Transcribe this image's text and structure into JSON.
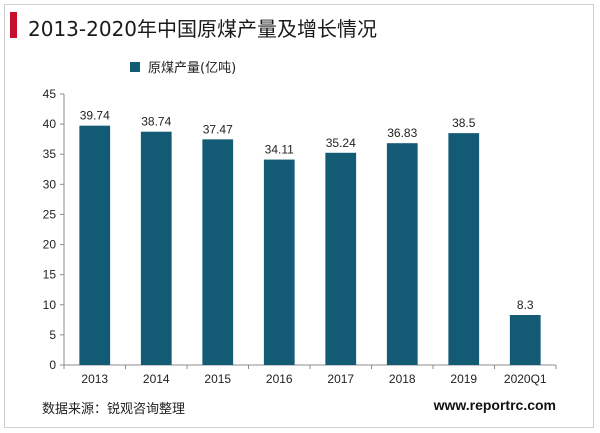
{
  "title": "2013-2020年中国原煤产量及增长情况",
  "source": "数据来源：锐观咨询整理",
  "website": "www.reportrc.com",
  "colors": {
    "accent": "#c8102e",
    "bar": "#135a75"
  },
  "chart_data": {
    "type": "bar",
    "title": "2013-2020年中国原煤产量及增长情况",
    "categories": [
      "2013",
      "2014",
      "2015",
      "2016",
      "2017",
      "2018",
      "2019",
      "2020Q1"
    ],
    "series": [
      {
        "name": "原煤产量(亿吨)",
        "values": [
          39.74,
          38.74,
          37.47,
          34.11,
          35.24,
          36.83,
          38.5,
          8.3
        ]
      }
    ],
    "value_labels": [
      "39.74",
      "38.74",
      "37.47",
      "34.11",
      "35.24",
      "36.83",
      "38.5",
      "8.3"
    ],
    "yticks": [
      0,
      5,
      10,
      15,
      20,
      25,
      30,
      35,
      40,
      45
    ],
    "ylim": [
      0,
      45
    ],
    "xlabel": "",
    "ylabel": "",
    "legend": "top-left",
    "grid": false
  }
}
